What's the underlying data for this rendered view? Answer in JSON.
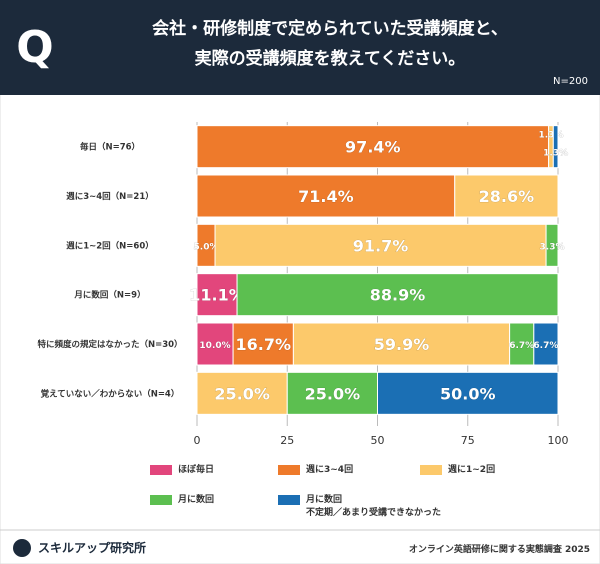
{
  "chart_data": {
    "type": "stacked-bar-horizontal",
    "title": "会社・研修制度で定められていた受講頻度と、\n実際の受講頻度を教えてください。",
    "note": "N=200",
    "categories": [
      "毎日（N=76）",
      "週に3~4回（N=21）",
      "週に1~2回（N=60）",
      "月に数回（N=9）",
      "特に頻度の規定はなかった（N=30）",
      "覚えていない／わからない（N=4）"
    ],
    "series": [
      {
        "name": "ほぼ毎日",
        "color": "#e2467c",
        "values": [
          null,
          null,
          null,
          11.1,
          10.0,
          null
        ],
        "value_labels": [
          null,
          null,
          null,
          "11.1%",
          "10.0%",
          null
        ]
      },
      {
        "name": "週に3~4回",
        "color": "#ee7a2b",
        "values": [
          97.4,
          71.4,
          5.0,
          null,
          16.7,
          null
        ],
        "value_labels": [
          "97.4%",
          "71.4%",
          "5.0%",
          null,
          "16.7%",
          null
        ]
      },
      {
        "name": "週に1~2回",
        "color": "#fcc96b",
        "values": [
          1.3,
          28.6,
          91.7,
          null,
          59.9,
          25.0
        ],
        "value_labels": [
          "1.3%",
          "28.6%",
          "91.7%",
          null,
          "59.9%",
          "25.0%"
        ]
      },
      {
        "name": "月に数回",
        "color": "#5cbf50",
        "values": [
          null,
          null,
          3.3,
          88.9,
          6.7,
          25.0
        ],
        "value_labels": [
          null,
          null,
          "3.3%",
          "88.9%",
          "6.7%",
          "25.0%"
        ]
      },
      {
        "name": "月に数回\n不定期／あまり受講できなかった",
        "color": "#1b6fb4",
        "values": [
          1.3,
          null,
          null,
          null,
          6.7,
          50.0
        ],
        "value_labels": [
          "1.3%",
          null,
          null,
          null,
          "6.7%",
          "50.0%"
        ]
      }
    ],
    "xlim": [
      0,
      100
    ],
    "xticks": [
      0,
      25,
      50,
      75,
      100
    ],
    "grid": true
  },
  "footer": {
    "logo": "スキルアップ研究所",
    "source": "オンライン英語研修に関する実態調査 2025"
  }
}
